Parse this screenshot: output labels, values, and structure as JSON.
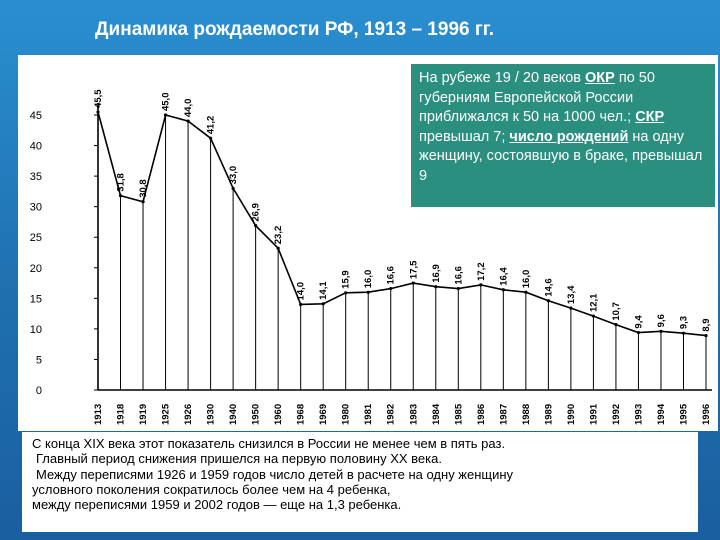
{
  "slide": {
    "title": "Динамика рождаемости РФ, 1913 – 1996 гг."
  },
  "info_box": {
    "t1": "На рубеже 19 / 20 веков ",
    "okr": "ОКР",
    "t2": " по 50 губерниям Европейской России приближался к 50 на 1000 чел.; ",
    "skr": "СКР",
    "t3": " превышал 7; ",
    "births": "число рождений",
    "t4": " на одну женщину, состоявшую в браке, превышал 9"
  },
  "notes": {
    "line1": "С конца XIX века этот показатель снизился в России не менее чем в пять раз.",
    "line2": "Главный период снижения пришелся на первую половину XX века.",
    "line3": "Между переписями 1926 и 1959 годов число детей в расчете на одну женщину",
    "line4": "условного поколения сократилось более чем на 4 ребенка,",
    "line5": "между переписями 1959 и 2002 годов — еще на 1,3 ребенка."
  },
  "colors": {
    "background": "#1f6fb0",
    "info_box": "#2a8f7e",
    "panel": "#ffffff",
    "line": "#000000"
  },
  "chart_data": {
    "type": "line",
    "categories": [
      "1913",
      "1918",
      "1919",
      "1925",
      "1926",
      "1930",
      "1940",
      "1950",
      "1960",
      "1968",
      "1969",
      "1980",
      "1981",
      "1982",
      "1983",
      "1984",
      "1985",
      "1986",
      "1987",
      "1988",
      "1989",
      "1990",
      "1991",
      "1992",
      "1993",
      "1994",
      "1995",
      "1996"
    ],
    "values": [
      45.5,
      31.8,
      30.8,
      45.0,
      44.0,
      41.2,
      33.0,
      26.9,
      23.2,
      14.0,
      14.1,
      15.9,
      16.0,
      16.6,
      17.5,
      16.9,
      16.6,
      17.2,
      16.4,
      16.0,
      14.6,
      13.4,
      12.1,
      10.7,
      9.4,
      9.6,
      9.3,
      8.9
    ],
    "value_labels": [
      "45,5",
      "31,8",
      "30,8",
      "45,0",
      "44,0",
      "41,2",
      "33,0",
      "26,9",
      "23,2",
      "14,0",
      "14,1",
      "15,9",
      "16,0",
      "16,6",
      "17,5",
      "16,9",
      "16,6",
      "17,2",
      "16,4",
      "16,0",
      "14,6",
      "13,4",
      "12,1",
      "10,7",
      "9,4",
      "9,6",
      "9,3",
      "8,9"
    ],
    "yticks": [
      "0",
      "5",
      "10",
      "15",
      "20",
      "25",
      "30",
      "35",
      "40",
      "45"
    ],
    "ylim": [
      0,
      50
    ],
    "title": "",
    "xlabel": "",
    "ylabel": "",
    "grid": "vertical drop lines"
  }
}
